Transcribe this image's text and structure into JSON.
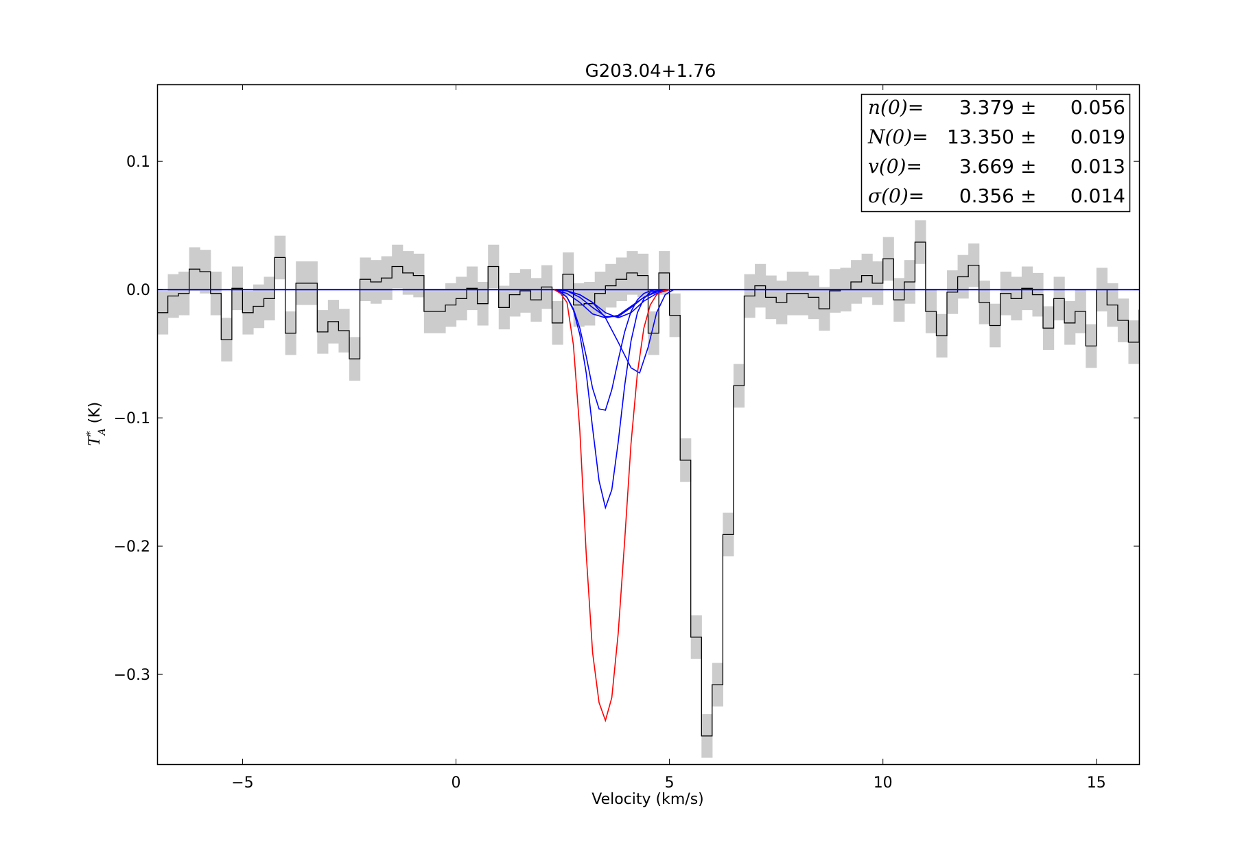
{
  "chart_data": {
    "type": "line",
    "title": "G203.04+1.76",
    "xlabel": "Velocity (km/s)",
    "ylabel": "T*A (K)",
    "xlim": [
      -7.0,
      16.0
    ],
    "ylim": [
      -0.37,
      0.16
    ],
    "xticks": [
      -5,
      0,
      5,
      10,
      15
    ],
    "xtick_labels": [
      "−5",
      "0",
      "5",
      "10",
      "15"
    ],
    "yticks": [
      0.1,
      0.0,
      -0.1,
      -0.2,
      -0.3
    ],
    "ytick_labels": [
      "0.1",
      "0.0",
      "−0.1",
      "−0.2",
      "−0.3"
    ],
    "grid": false,
    "fit_box": {
      "placement": "top-right",
      "rows": [
        {
          "param": "n(0)=",
          "value": "3.379",
          "pm": "±",
          "error": "0.056"
        },
        {
          "param": "N(0)=",
          "value": "13.350",
          "pm": "±",
          "error": "0.019"
        },
        {
          "param": "v(0)=",
          "value": "3.669",
          "pm": "±",
          "error": "0.013"
        },
        {
          "param": "σ(0)=",
          "value": "0.356",
          "pm": "±",
          "error": "0.014"
        }
      ]
    },
    "spectrum": {
      "style": "steps",
      "x_start": -7.0,
      "channel_width": 0.25,
      "uncertainty": 0.017,
      "color": "#000000",
      "band_color": "#cccccc",
      "y": [
        -0.018,
        -0.005,
        -0.003,
        0.016,
        0.014,
        -0.003,
        -0.039,
        0.001,
        -0.018,
        -0.013,
        -0.007,
        0.025,
        -0.034,
        0.005,
        0.005,
        -0.033,
        -0.025,
        -0.032,
        -0.054,
        0.008,
        0.006,
        0.009,
        0.018,
        0.013,
        0.011,
        -0.017,
        -0.017,
        -0.012,
        -0.007,
        0.001,
        -0.011,
        0.018,
        -0.014,
        -0.004,
        -0.001,
        -0.008,
        0.002,
        -0.026,
        0.012,
        -0.012,
        -0.011,
        -0.003,
        0.003,
        0.008,
        0.013,
        0.011,
        -0.034,
        0.013,
        -0.02,
        -0.133,
        -0.271,
        -0.348,
        -0.308,
        -0.191,
        -0.075,
        -0.005,
        0.003,
        -0.006,
        -0.01,
        -0.003,
        -0.003,
        -0.006,
        -0.015,
        -0.001,
        0.0,
        0.006,
        0.011,
        0.005,
        0.024,
        -0.008,
        0.006,
        0.037,
        -0.017,
        -0.036,
        -0.002,
        0.01,
        0.019,
        -0.01,
        -0.028,
        -0.003,
        -0.007,
        0.001,
        -0.004,
        -0.03,
        -0.007,
        -0.026,
        -0.017,
        -0.044,
        0.0,
        -0.012,
        -0.024,
        -0.041,
        -0.016,
        -0.027,
        0.005,
        -0.001,
        -0.02,
        -0.006,
        0.008,
        0.015,
        0.0,
        -0.016,
        0.002,
        -0.013,
        0.03,
        0.002,
        -0.013,
        0.024,
        -0.028,
        -0.004,
        0.019,
        -0.007,
        -0.021,
        -0.01,
        0.021,
        0.003
      ]
    },
    "series": [
      {
        "role": "baseline",
        "color": "#0000ff",
        "x": [
          -7.0,
          16.0
        ],
        "y": [
          0.0,
          0.0
        ]
      },
      {
        "role": "component",
        "color": "#0000ff",
        "x": [
          2.3,
          2.45,
          2.6,
          2.75,
          2.9,
          3.05,
          3.2,
          3.35,
          3.5,
          3.65,
          3.8,
          3.95,
          4.1,
          4.25,
          4.4,
          4.55,
          4.7,
          4.85,
          5.0
        ],
        "y": [
          0.0,
          -0.002,
          -0.006,
          -0.016,
          -0.035,
          -0.065,
          -0.108,
          -0.149,
          -0.17,
          -0.156,
          -0.119,
          -0.075,
          -0.04,
          -0.018,
          -0.007,
          -0.002,
          -0.001,
          0.0,
          0.0
        ]
      },
      {
        "role": "component",
        "color": "#0000ff",
        "x": [
          2.3,
          2.45,
          2.6,
          2.75,
          2.9,
          3.05,
          3.2,
          3.35,
          3.5,
          3.65,
          3.8,
          3.95,
          4.1,
          4.25,
          4.4,
          4.55,
          4.7,
          4.85,
          5.0
        ],
        "y": [
          0.0,
          -0.002,
          -0.006,
          -0.015,
          -0.03,
          -0.052,
          -0.077,
          -0.093,
          -0.094,
          -0.078,
          -0.055,
          -0.033,
          -0.017,
          -0.008,
          -0.003,
          -0.001,
          0.0,
          0.0,
          0.0
        ]
      },
      {
        "role": "component",
        "color": "#0000ff",
        "x": [
          2.3,
          2.6,
          2.9,
          3.2,
          3.5,
          3.8,
          4.1,
          4.3,
          4.5,
          4.7,
          4.9,
          5.1
        ],
        "y": [
          0.0,
          -0.001,
          -0.004,
          -0.01,
          -0.022,
          -0.041,
          -0.061,
          -0.065,
          -0.045,
          -0.018,
          -0.004,
          0.0
        ]
      },
      {
        "role": "component",
        "color": "#0000ff",
        "x": [
          2.3,
          2.6,
          2.9,
          3.2,
          3.5,
          3.8,
          4.1,
          4.4,
          4.7,
          5.0
        ],
        "y": [
          0.0,
          -0.003,
          -0.01,
          -0.019,
          -0.022,
          -0.02,
          -0.013,
          -0.006,
          -0.002,
          0.0
        ]
      },
      {
        "role": "component",
        "color": "#0000ff",
        "x": [
          2.3,
          2.6,
          2.9,
          3.2,
          3.5,
          3.8,
          4.1,
          4.4,
          4.7,
          5.0
        ],
        "y": [
          0.0,
          -0.001,
          -0.006,
          -0.014,
          -0.021,
          -0.021,
          -0.014,
          -0.006,
          -0.001,
          0.0
        ]
      },
      {
        "role": "component",
        "color": "#0000ff",
        "x": [
          2.3,
          2.6,
          2.9,
          3.2,
          3.5,
          3.8,
          4.1,
          4.4,
          4.7,
          5.0
        ],
        "y": [
          0.0,
          -0.001,
          -0.004,
          -0.01,
          -0.018,
          -0.022,
          -0.018,
          -0.009,
          -0.003,
          0.0
        ]
      },
      {
        "role": "model_sum",
        "color": "#ff0000",
        "x": [
          2.3,
          2.45,
          2.6,
          2.75,
          2.9,
          3.05,
          3.2,
          3.35,
          3.5,
          3.65,
          3.8,
          3.95,
          4.1,
          4.25,
          4.4,
          4.55,
          4.7,
          4.85,
          5.0
        ],
        "y": [
          0.0,
          -0.003,
          -0.01,
          -0.043,
          -0.11,
          -0.206,
          -0.283,
          -0.322,
          -0.336,
          -0.318,
          -0.268,
          -0.196,
          -0.12,
          -0.065,
          -0.03,
          -0.012,
          -0.004,
          -0.001,
          0.0
        ]
      }
    ]
  }
}
